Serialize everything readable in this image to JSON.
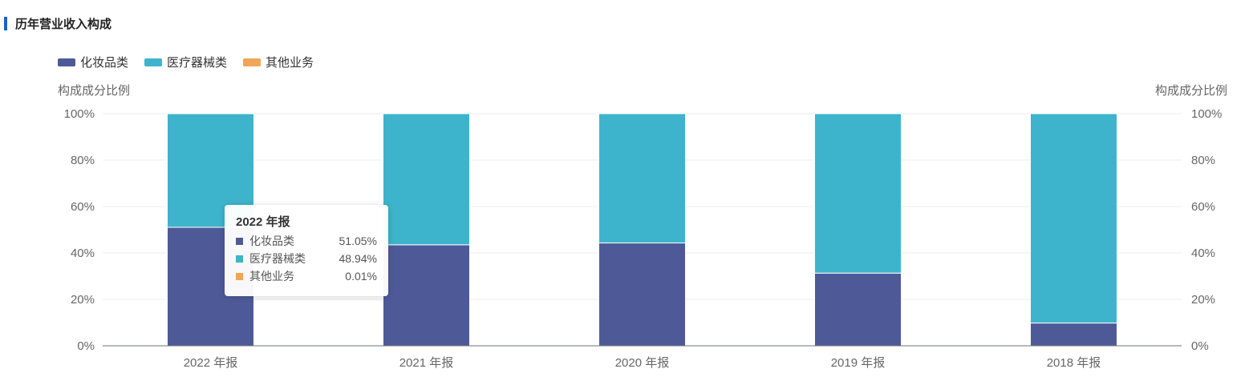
{
  "header": {
    "title": "历年营业收入构成"
  },
  "colors": {
    "accent": "#1f5fc8",
    "cosmetics": "#4e5a97",
    "medical": "#3db4cb",
    "other": "#f0a557"
  },
  "legend": [
    {
      "label": "化妆品类",
      "color": "#4e5a97"
    },
    {
      "label": "医疗器械类",
      "color": "#3db4cb"
    },
    {
      "label": "其他业务",
      "color": "#f0a557"
    }
  ],
  "chart_data": {
    "type": "bar",
    "stacked": true,
    "categories": [
      "2022 年报",
      "2021 年报",
      "2020 年报",
      "2019 年报",
      "2018 年报"
    ],
    "series": [
      {
        "name": "化妆品类",
        "values": [
          51.05,
          43.5,
          44.3,
          31.3,
          9.8
        ]
      },
      {
        "name": "医疗器械类",
        "values": [
          48.94,
          56.5,
          55.7,
          68.7,
          90.2
        ]
      },
      {
        "name": "其他业务",
        "values": [
          0.01,
          0,
          0,
          0,
          0
        ]
      }
    ],
    "ylabel_left": "构成成分比例",
    "ylabel_right": "构成成分比例",
    "ylim": [
      0,
      100
    ],
    "yticks": [
      "0%",
      "20%",
      "40%",
      "60%",
      "80%",
      "100%"
    ],
    "grid": true,
    "legend_position": "top-left"
  },
  "tooltip": {
    "title": "2022 年报",
    "rows": [
      {
        "name": "化妆品类",
        "value": "51.05%",
        "color": "#4e5a97"
      },
      {
        "name": "医疗器械类",
        "value": "48.94%",
        "color": "#3db4cb"
      },
      {
        "name": "其他业务",
        "value": "0.01%",
        "color": "#f0a557"
      }
    ]
  }
}
